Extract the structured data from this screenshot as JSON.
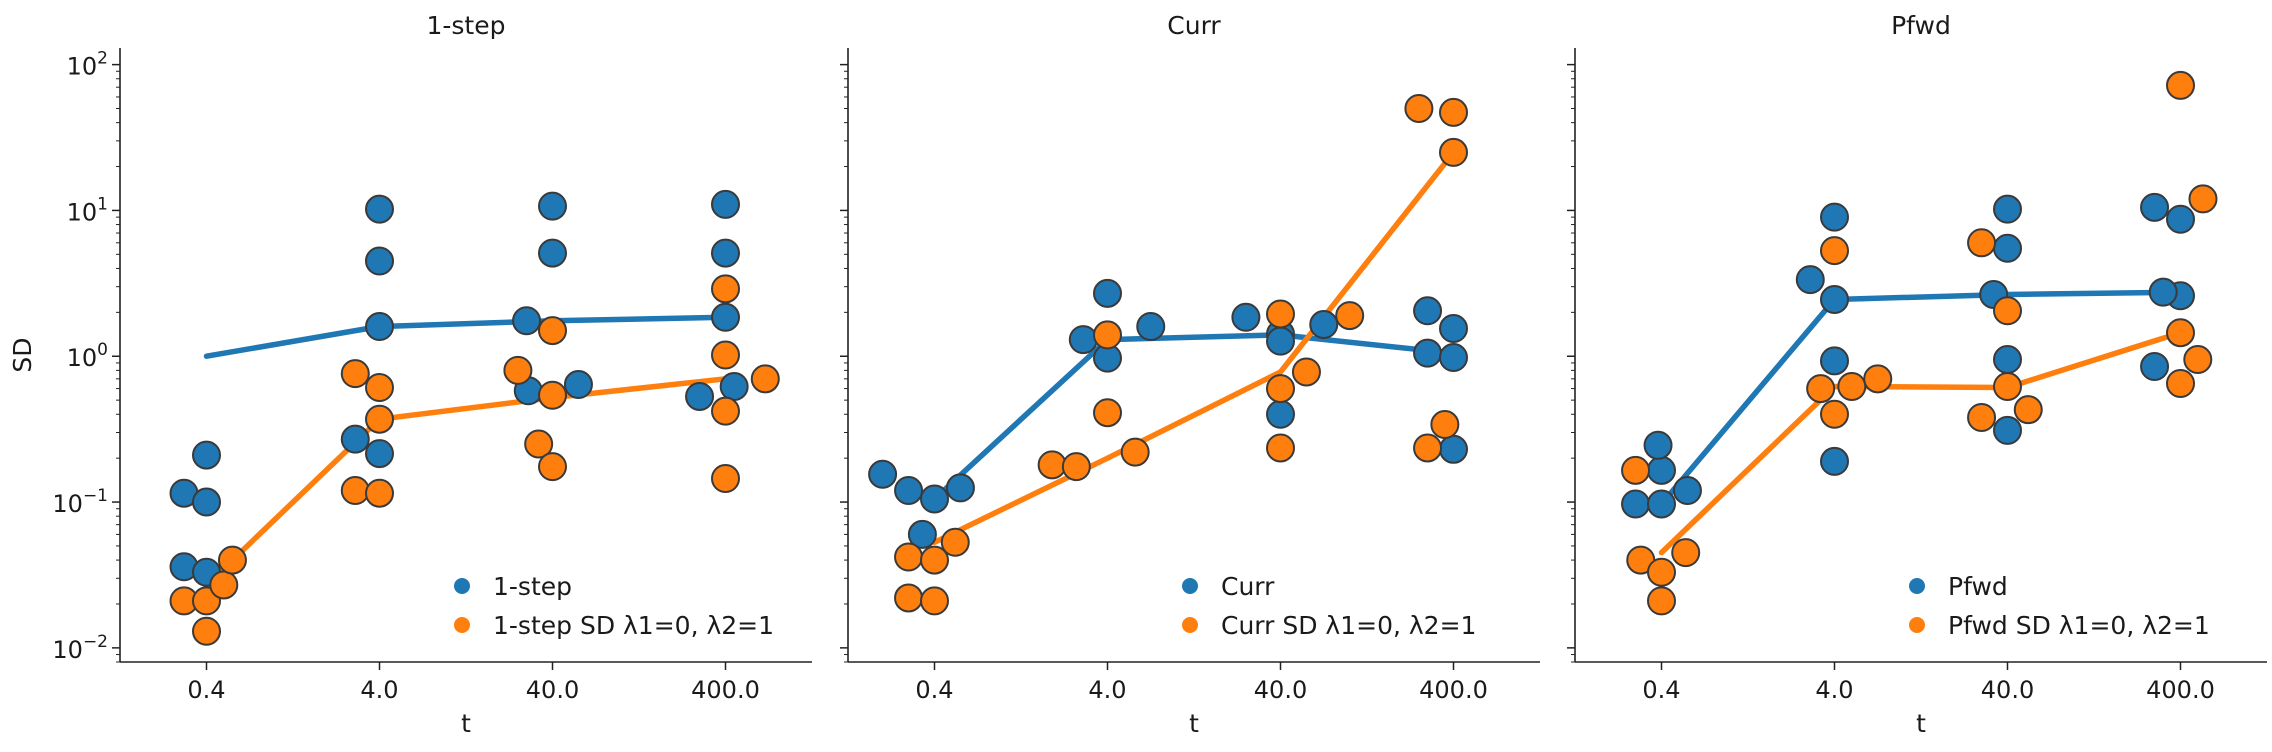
{
  "chart_data": [
    {
      "type": "scatter",
      "title": "1-step",
      "xlabel": "t",
      "ylabel": "SD",
      "yscale": "log",
      "ylim": [
        0.008,
        130
      ],
      "categories": [
        "0.4",
        "4.0",
        "40.0",
        "400.0"
      ],
      "legend_position": "lower-right",
      "series": [
        {
          "name": "1-step",
          "color": "#1f77b4",
          "points": [
            [
              0.37,
              0.115
            ],
            [
              0.37,
              0.036
            ],
            [
              0.5,
              0.21
            ],
            [
              0.5,
              0.1
            ],
            [
              0.5,
              0.033
            ],
            [
              1.5,
              10.2
            ],
            [
              1.5,
              4.5
            ],
            [
              1.5,
              1.6
            ],
            [
              1.5,
              0.215
            ],
            [
              1.36,
              0.27
            ],
            [
              2.35,
              1.75
            ],
            [
              2.5,
              10.7
            ],
            [
              2.5,
              5.1
            ],
            [
              2.36,
              0.58
            ],
            [
              2.65,
              0.64
            ],
            [
              3.5,
              11
            ],
            [
              3.5,
              5.1
            ],
            [
              3.5,
              1.85
            ],
            [
              3.35,
              0.53
            ],
            [
              3.55,
              0.62
            ]
          ],
          "line": [
            1.0,
            1.6,
            1.75,
            1.85
          ]
        },
        {
          "name": "1-step SD λ1=0, λ2=1",
          "color": "#ff7f0e",
          "points": [
            [
              0.37,
              0.021
            ],
            [
              0.5,
              0.021
            ],
            [
              0.5,
              0.013
            ],
            [
              0.6,
              0.027
            ],
            [
              0.65,
              0.04
            ],
            [
              1.36,
              0.76
            ],
            [
              1.5,
              0.61
            ],
            [
              1.5,
              0.37
            ],
            [
              1.36,
              0.12
            ],
            [
              1.5,
              0.115
            ],
            [
              2.3,
              0.8
            ],
            [
              2.5,
              1.5
            ],
            [
              2.5,
              0.54
            ],
            [
              2.42,
              0.25
            ],
            [
              2.5,
              0.175
            ],
            [
              3.5,
              2.9
            ],
            [
              3.5,
              1.02
            ],
            [
              3.5,
              0.42
            ],
            [
              3.5,
              0.145
            ],
            [
              3.73,
              0.7
            ]
          ],
          "line": [
            0.027,
            0.37,
            0.52,
            0.7
          ]
        }
      ]
    },
    {
      "type": "scatter",
      "title": "Curr",
      "xlabel": "t",
      "ylabel": "",
      "yscale": "log",
      "ylim": [
        0.008,
        130
      ],
      "categories": [
        "0.4",
        "4.0",
        "40.0",
        "400.0"
      ],
      "legend_position": "lower-right",
      "series": [
        {
          "name": "Curr",
          "color": "#1f77b4",
          "points": [
            [
              0.2,
              0.155
            ],
            [
              0.35,
              0.12
            ],
            [
              0.5,
              0.105
            ],
            [
              0.65,
              0.125
            ],
            [
              0.43,
              0.06
            ],
            [
              1.5,
              2.7
            ],
            [
              1.36,
              1.3
            ],
            [
              1.5,
              0.97
            ],
            [
              1.75,
              1.6
            ],
            [
              2.3,
              1.85
            ],
            [
              2.5,
              1.42
            ],
            [
              2.75,
              1.65
            ],
            [
              2.5,
              1.27
            ],
            [
              2.5,
              0.4
            ],
            [
              3.35,
              2.05
            ],
            [
              3.5,
              1.55
            ],
            [
              3.35,
              1.05
            ],
            [
              3.5,
              0.98
            ],
            [
              3.5,
              0.23
            ]
          ],
          "line": [
            0.105,
            1.3,
            1.4,
            1.05
          ]
        },
        {
          "name": "Curr SD λ1=0, λ2=1",
          "color": "#ff7f0e",
          "points": [
            [
              0.35,
              0.042
            ],
            [
              0.5,
              0.04
            ],
            [
              0.62,
              0.053
            ],
            [
              0.35,
              0.022
            ],
            [
              0.5,
              0.021
            ],
            [
              1.5,
              1.4
            ],
            [
              1.5,
              0.41
            ],
            [
              1.18,
              0.18
            ],
            [
              1.32,
              0.175
            ],
            [
              1.66,
              0.22
            ],
            [
              2.5,
              1.95
            ],
            [
              2.5,
              0.6
            ],
            [
              2.65,
              0.78
            ],
            [
              2.9,
              1.9
            ],
            [
              2.5,
              0.235
            ],
            [
              3.3,
              50
            ],
            [
              3.5,
              47
            ],
            [
              3.5,
              25
            ],
            [
              3.35,
              0.235
            ],
            [
              3.45,
              0.34
            ]
          ],
          "line": [
            0.053,
            0.2,
            0.78,
            25
          ]
        }
      ]
    },
    {
      "type": "scatter",
      "title": "Pfwd",
      "xlabel": "t",
      "ylabel": "",
      "yscale": "log",
      "ylim": [
        0.008,
        130
      ],
      "categories": [
        "0.4",
        "4.0",
        "40.0",
        "400.0"
      ],
      "legend_position": "lower-right",
      "series": [
        {
          "name": "Pfwd",
          "color": "#1f77b4",
          "points": [
            [
              0.35,
              0.097
            ],
            [
              0.5,
              0.097
            ],
            [
              0.5,
              0.165
            ],
            [
              0.65,
              0.12
            ],
            [
              0.48,
              0.245
            ],
            [
              1.5,
              9
            ],
            [
              1.36,
              3.35
            ],
            [
              1.5,
              2.45
            ],
            [
              1.5,
              0.93
            ],
            [
              1.5,
              0.19
            ],
            [
              2.5,
              10.2
            ],
            [
              2.5,
              5.5
            ],
            [
              2.42,
              2.65
            ],
            [
              2.5,
              0.95
            ],
            [
              2.5,
              0.31
            ],
            [
              3.35,
              10.5
            ],
            [
              3.5,
              8.7
            ],
            [
              3.5,
              2.6
            ],
            [
              3.35,
              0.85
            ],
            [
              3.4,
              2.75
            ]
          ],
          "line": [
            0.097,
            2.45,
            2.65,
            2.75
          ]
        },
        {
          "name": "Pfwd SD λ1=0, λ2=1",
          "color": "#ff7f0e",
          "points": [
            [
              0.38,
              0.04
            ],
            [
              0.5,
              0.033
            ],
            [
              0.5,
              0.021
            ],
            [
              0.64,
              0.045
            ],
            [
              0.35,
              0.165
            ],
            [
              1.5,
              5.3
            ],
            [
              1.5,
              0.4
            ],
            [
              1.42,
              0.6
            ],
            [
              1.6,
              0.62
            ],
            [
              1.75,
              0.7
            ],
            [
              2.5,
              2.05
            ],
            [
              2.5,
              0.62
            ],
            [
              2.35,
              6
            ],
            [
              2.35,
              0.38
            ],
            [
              2.62,
              0.43
            ],
            [
              3.5,
              72
            ],
            [
              3.63,
              12
            ],
            [
              3.5,
              1.45
            ],
            [
              3.5,
              0.65
            ],
            [
              3.6,
              0.95
            ]
          ],
          "line": [
            0.045,
            0.62,
            0.61,
            1.45
          ]
        }
      ]
    }
  ]
}
